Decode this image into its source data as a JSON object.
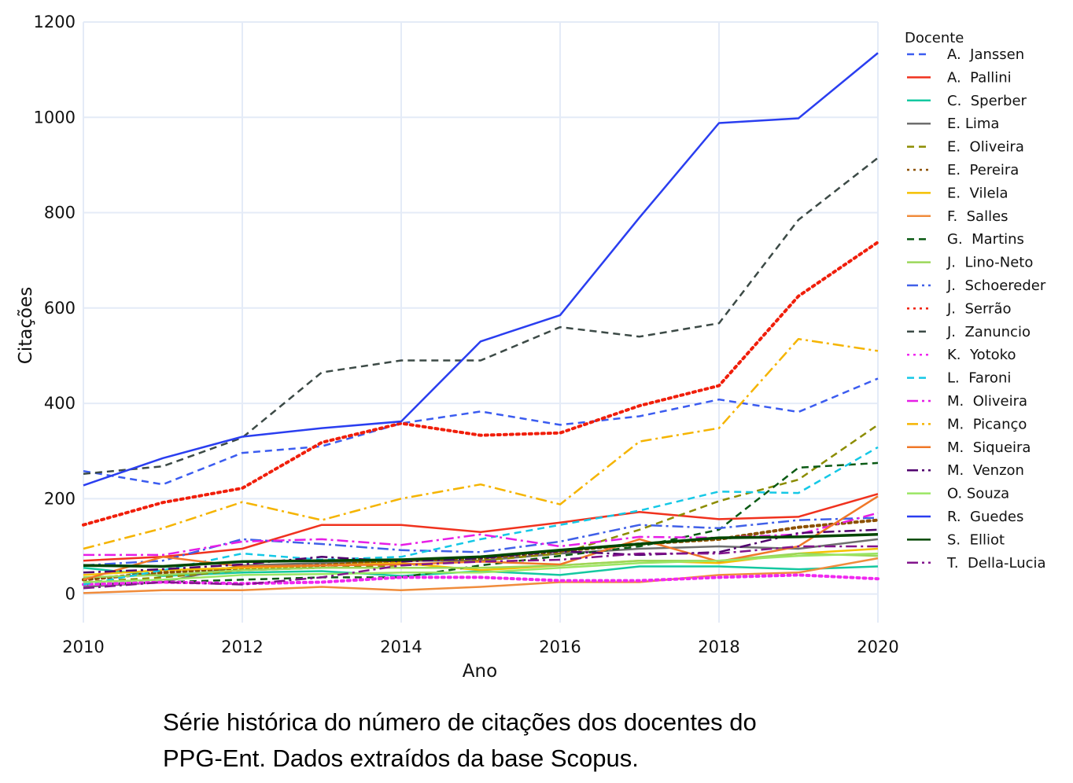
{
  "chart_data": {
    "type": "line",
    "xlabel": "Ano",
    "ylabel": "Citações",
    "xlim": [
      2010,
      2020
    ],
    "ylim": [
      -60,
      1200
    ],
    "x_ticks": [
      2010,
      2012,
      2014,
      2016,
      2018,
      2020
    ],
    "y_ticks": [
      0,
      200,
      400,
      600,
      800,
      1000,
      1200
    ],
    "grid": true,
    "legend_title": "Docente",
    "legend_position": "right",
    "x": [
      2010,
      2011,
      2012,
      2013,
      2014,
      2015,
      2016,
      2017,
      2018,
      2019,
      2020
    ],
    "series": [
      {
        "name": "A.  Janssen",
        "color": "#3b5cf0",
        "dash": "dash",
        "values": [
          258,
          230,
          296,
          310,
          358,
          383,
          355,
          373,
          408,
          382,
          452
        ]
      },
      {
        "name": "A.  Pallini",
        "color": "#f0321e",
        "dash": "solid",
        "values": [
          70,
          78,
          95,
          145,
          145,
          130,
          150,
          172,
          157,
          162,
          210
        ]
      },
      {
        "name": "C.  Sperber",
        "color": "#14c8a0",
        "dash": "solid",
        "values": [
          55,
          38,
          45,
          48,
          38,
          48,
          40,
          58,
          58,
          52,
          58
        ]
      },
      {
        "name": "E. Lima",
        "color": "#6e6e6e",
        "dash": "solid",
        "values": [
          15,
          25,
          60,
          65,
          70,
          70,
          85,
          95,
          100,
          95,
          115
        ]
      },
      {
        "name": "E.  Oliveira",
        "color": "#8c8c00",
        "dash": "dash",
        "values": [
          25,
          35,
          50,
          55,
          60,
          70,
          85,
          135,
          195,
          240,
          355
        ]
      },
      {
        "name": "E.  Pereira",
        "color": "#8c5000",
        "dash": "dot",
        "values": [
          30,
          45,
          55,
          60,
          70,
          75,
          90,
          105,
          115,
          140,
          155
        ]
      },
      {
        "name": "E.  Vilela",
        "color": "#f5c000",
        "dash": "solid",
        "values": [
          40,
          50,
          55,
          60,
          65,
          50,
          60,
          70,
          65,
          85,
          95
        ]
      },
      {
        "name": "F.  Salles",
        "color": "#f08c3c",
        "dash": "solid",
        "values": [
          2,
          8,
          8,
          15,
          8,
          15,
          25,
          25,
          40,
          45,
          75
        ]
      },
      {
        "name": "G.  Martins",
        "color": "#0a5a14",
        "dash": "dash",
        "values": [
          20,
          25,
          30,
          35,
          35,
          60,
          80,
          100,
          135,
          265,
          275
        ]
      },
      {
        "name": "J.  Lino-Neto",
        "color": "#9bd75a",
        "dash": "solid",
        "values": [
          35,
          40,
          50,
          55,
          55,
          55,
          60,
          70,
          70,
          85,
          80
        ]
      },
      {
        "name": "J.  Schoereder",
        "color": "#4060e8",
        "dash": "dashdot",
        "values": [
          60,
          70,
          115,
          105,
          92,
          88,
          110,
          145,
          138,
          155,
          160
        ]
      },
      {
        "name": "J.  Serrão",
        "color": "#f01e0a",
        "dash": "dot",
        "values": [
          145,
          192,
          222,
          318,
          358,
          333,
          338,
          395,
          437,
          625,
          738
        ]
      },
      {
        "name": "J.  Zanuncio",
        "color": "#3c4a46",
        "dash": "dash",
        "values": [
          252,
          268,
          328,
          465,
          490,
          490,
          560,
          540,
          568,
          785,
          915
        ]
      },
      {
        "name": "K.  Yotoko",
        "color": "#f028f0",
        "dash": "dot",
        "values": [
          20,
          25,
          22,
          25,
          35,
          35,
          28,
          28,
          35,
          40,
          32
        ]
      },
      {
        "name": "L.  Faroni",
        "color": "#14c8e6",
        "dash": "dash",
        "values": [
          20,
          50,
          85,
          72,
          78,
          115,
          145,
          175,
          215,
          212,
          308
        ]
      },
      {
        "name": "M.  Oliveira",
        "color": "#e61ee6",
        "dash": "dashdot",
        "values": [
          82,
          82,
          110,
          115,
          103,
          125,
          100,
          120,
          118,
          125,
          170
        ]
      },
      {
        "name": "M.  Picanço",
        "color": "#f5b400",
        "dash": "dashdot",
        "values": [
          95,
          138,
          193,
          155,
          200,
          230,
          188,
          320,
          348,
          535,
          510
        ]
      },
      {
        "name": "M.  Siqueira",
        "color": "#f07828",
        "dash": "solid",
        "values": [
          30,
          78,
          58,
          60,
          62,
          68,
          62,
          115,
          68,
          100,
          205
        ]
      },
      {
        "name": "M.  Venzon",
        "color": "#50006e",
        "dash": "dashdot",
        "values": [
          45,
          52,
          62,
          78,
          68,
          75,
          90,
          82,
          88,
          128,
          135
        ]
      },
      {
        "name": "O. Souza",
        "color": "#9be664",
        "dash": "solid",
        "values": [
          25,
          30,
          40,
          42,
          45,
          45,
          55,
          65,
          70,
          80,
          85
        ]
      },
      {
        "name": "R.  Guedes",
        "color": "#2a3ef0",
        "dash": "solid",
        "values": [
          228,
          285,
          330,
          348,
          362,
          530,
          585,
          790,
          988,
          998,
          1135
        ]
      },
      {
        "name": "S.  Elliot",
        "color": "#004600",
        "dash": "solid",
        "values": [
          60,
          58,
          68,
          70,
          72,
          78,
          92,
          105,
          118,
          120,
          125
        ]
      },
      {
        "name": "T.  Della-Lucia",
        "color": "#82148c",
        "dash": "dashdot",
        "values": [
          12,
          25,
          20,
          35,
          60,
          68,
          72,
          85,
          85,
          100,
          100
        ]
      }
    ]
  },
  "caption": {
    "line1": "Série histórica do número de citações dos docentes do",
    "line2": "PPG-Ent. Dados extraídos da base Scopus."
  }
}
